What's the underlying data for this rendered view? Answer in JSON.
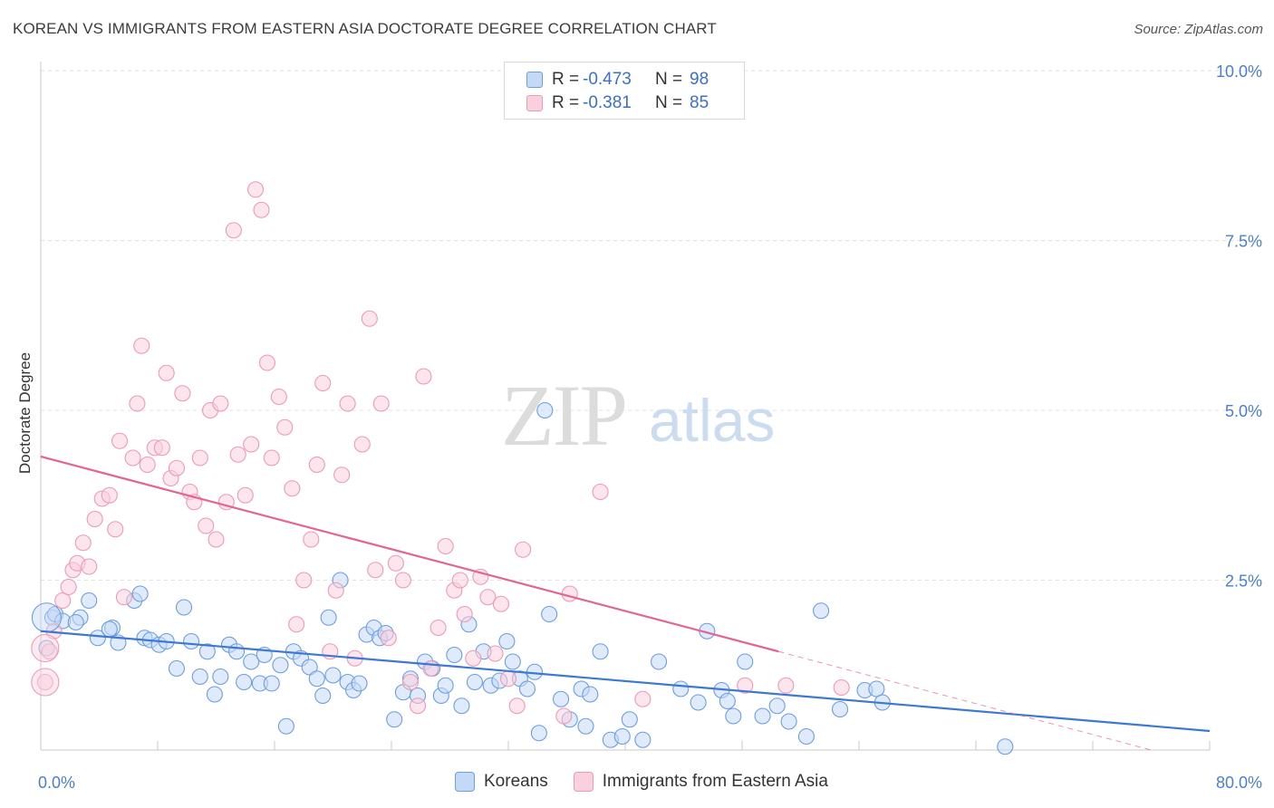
{
  "header": {
    "title": "KOREAN VS IMMIGRANTS FROM EASTERN ASIA DOCTORATE DEGREE CORRELATION CHART",
    "source": "Source: ZipAtlas.com"
  },
  "stats": [
    {
      "r_label": "R =",
      "r_value": "-0.473",
      "n_label": "N =",
      "n_value": "98",
      "color": "#6c9ee0",
      "fill": "#c4d9f6"
    },
    {
      "r_label": "R =",
      "r_value": "-0.381",
      "n_label": "N =",
      "n_value": "85",
      "color": "#ee9ab4",
      "fill": "#fad0dd"
    }
  ],
  "legend": [
    {
      "label": "Koreans",
      "color": "#6c9ee0",
      "fill": "#c4d9f6"
    },
    {
      "label": "Immigrants from Eastern Asia",
      "color": "#ee9ab4",
      "fill": "#fad0dd"
    }
  ],
  "chart_data": {
    "type": "scatter",
    "title": "KOREAN VS IMMIGRANTS FROM EASTERN ASIA DOCTORATE DEGREE CORRELATION CHART",
    "xlabel": "",
    "ylabel": "Doctorate Degree",
    "xlim": [
      0,
      80
    ],
    "ylim": [
      0,
      10.0
    ],
    "x_ticks": [
      "0.0%",
      "80.0%"
    ],
    "y_ticks": [
      {
        "value": 2.5,
        "label": "2.5%"
      },
      {
        "value": 5.0,
        "label": "5.0%"
      },
      {
        "value": 7.5,
        "label": "7.5%"
      },
      {
        "value": 10.0,
        "label": "10.0%"
      }
    ],
    "grid": true,
    "legend_position": "bottom",
    "watermark": {
      "main": "ZIP",
      "sub": "atlas"
    },
    "series": [
      {
        "name": "Koreans",
        "color": "#3d78d4",
        "fill": "#c4d9f6",
        "stroke": "#6c9ee0",
        "trend": {
          "x": [
            0,
            80
          ],
          "y": [
            1.75,
            0.28
          ]
        },
        "points": [
          [
            0.8,
            1.95
          ],
          [
            1.0,
            2.0
          ],
          [
            0.4,
            1.5
          ],
          [
            1.5,
            1.9
          ],
          [
            2.7,
            1.95
          ],
          [
            2.4,
            1.88
          ],
          [
            3.3,
            2.2
          ],
          [
            3.9,
            1.65
          ],
          [
            4.9,
            1.8
          ],
          [
            4.7,
            1.78
          ],
          [
            5.3,
            1.58
          ],
          [
            6.4,
            2.2
          ],
          [
            6.8,
            2.3
          ],
          [
            7.1,
            1.65
          ],
          [
            7.5,
            1.62
          ],
          [
            8.1,
            1.55
          ],
          [
            8.6,
            1.6
          ],
          [
            9.3,
            1.2
          ],
          [
            9.8,
            2.1
          ],
          [
            10.3,
            1.6
          ],
          [
            10.9,
            1.08
          ],
          [
            11.4,
            1.45
          ],
          [
            11.9,
            0.82
          ],
          [
            12.3,
            1.08
          ],
          [
            12.9,
            1.55
          ],
          [
            13.4,
            1.45
          ],
          [
            13.9,
            1.0
          ],
          [
            14.4,
            1.3
          ],
          [
            15.0,
            0.98
          ],
          [
            15.3,
            1.4
          ],
          [
            15.8,
            0.98
          ],
          [
            16.4,
            1.25
          ],
          [
            16.8,
            0.35
          ],
          [
            17.3,
            1.45
          ],
          [
            17.8,
            1.35
          ],
          [
            18.4,
            1.22
          ],
          [
            18.9,
            1.05
          ],
          [
            19.3,
            0.8
          ],
          [
            19.7,
            1.95
          ],
          [
            20.0,
            1.1
          ],
          [
            20.5,
            2.5
          ],
          [
            21.0,
            1.0
          ],
          [
            21.4,
            0.88
          ],
          [
            21.8,
            0.98
          ],
          [
            22.3,
            1.7
          ],
          [
            22.8,
            1.8
          ],
          [
            23.2,
            1.65
          ],
          [
            23.6,
            1.72
          ],
          [
            24.2,
            0.45
          ],
          [
            24.8,
            0.85
          ],
          [
            25.3,
            1.05
          ],
          [
            25.8,
            0.8
          ],
          [
            26.3,
            1.3
          ],
          [
            26.8,
            1.2
          ],
          [
            27.4,
            0.8
          ],
          [
            27.7,
            0.95
          ],
          [
            28.3,
            1.4
          ],
          [
            28.8,
            0.65
          ],
          [
            29.3,
            1.85
          ],
          [
            29.7,
            1.0
          ],
          [
            30.3,
            1.45
          ],
          [
            30.8,
            0.95
          ],
          [
            31.4,
            1.02
          ],
          [
            31.9,
            1.6
          ],
          [
            32.3,
            1.3
          ],
          [
            32.8,
            1.05
          ],
          [
            33.3,
            0.9
          ],
          [
            33.8,
            1.15
          ],
          [
            34.1,
            0.25
          ],
          [
            34.8,
            2.0
          ],
          [
            35.6,
            0.75
          ],
          [
            36.2,
            0.45
          ],
          [
            37.0,
            0.9
          ],
          [
            37.3,
            0.35
          ],
          [
            37.6,
            0.82
          ],
          [
            38.3,
            1.45
          ],
          [
            39.0,
            0.15
          ],
          [
            39.8,
            0.2
          ],
          [
            40.3,
            0.45
          ],
          [
            41.2,
            0.15
          ],
          [
            34.5,
            5.0
          ],
          [
            42.3,
            1.3
          ],
          [
            43.8,
            0.9
          ],
          [
            45.0,
            0.7
          ],
          [
            45.6,
            1.75
          ],
          [
            46.6,
            0.88
          ],
          [
            47.0,
            0.72
          ],
          [
            47.4,
            0.5
          ],
          [
            48.2,
            1.3
          ],
          [
            49.4,
            0.5
          ],
          [
            50.4,
            0.65
          ],
          [
            51.2,
            0.42
          ],
          [
            52.4,
            0.2
          ],
          [
            53.4,
            2.05
          ],
          [
            54.7,
            0.6
          ],
          [
            56.4,
            0.88
          ],
          [
            57.2,
            0.9
          ],
          [
            57.6,
            0.7
          ],
          [
            66.0,
            0.05
          ]
        ]
      },
      {
        "name": "Immigrants from Eastern Asia",
        "color": "#e36591",
        "fill": "#fad0dd",
        "stroke": "#ee9ab4",
        "trend": {
          "x": [
            0,
            50.5
          ],
          "y": [
            4.32,
            1.45
          ],
          "dashed_x": [
            50.5,
            76
          ],
          "dashed_y": [
            1.45,
            0.0
          ]
        },
        "points": [
          [
            0.3,
            1.0
          ],
          [
            0.6,
            1.45
          ],
          [
            0.9,
            1.75
          ],
          [
            1.5,
            2.2
          ],
          [
            1.9,
            2.4
          ],
          [
            2.2,
            2.65
          ],
          [
            2.5,
            2.75
          ],
          [
            2.9,
            3.05
          ],
          [
            3.3,
            2.7
          ],
          [
            3.7,
            3.4
          ],
          [
            4.2,
            3.7
          ],
          [
            4.7,
            3.75
          ],
          [
            5.1,
            3.25
          ],
          [
            5.4,
            4.55
          ],
          [
            5.7,
            2.25
          ],
          [
            6.3,
            4.3
          ],
          [
            6.6,
            5.1
          ],
          [
            6.9,
            5.95
          ],
          [
            7.3,
            4.2
          ],
          [
            7.8,
            4.45
          ],
          [
            8.3,
            4.45
          ],
          [
            8.6,
            5.55
          ],
          [
            8.9,
            4.0
          ],
          [
            9.3,
            4.15
          ],
          [
            9.7,
            5.25
          ],
          [
            10.2,
            3.8
          ],
          [
            10.5,
            3.65
          ],
          [
            10.9,
            4.3
          ],
          [
            11.3,
            3.3
          ],
          [
            11.6,
            5.0
          ],
          [
            12.0,
            3.1
          ],
          [
            12.3,
            5.1
          ],
          [
            12.7,
            3.65
          ],
          [
            13.2,
            7.65
          ],
          [
            13.5,
            4.35
          ],
          [
            14.0,
            3.75
          ],
          [
            14.4,
            4.5
          ],
          [
            14.7,
            8.25
          ],
          [
            15.1,
            7.95
          ],
          [
            15.5,
            5.7
          ],
          [
            15.8,
            4.3
          ],
          [
            16.3,
            5.2
          ],
          [
            16.7,
            4.75
          ],
          [
            17.2,
            3.85
          ],
          [
            17.5,
            1.85
          ],
          [
            18.0,
            2.5
          ],
          [
            18.5,
            3.1
          ],
          [
            18.9,
            4.2
          ],
          [
            19.3,
            5.4
          ],
          [
            19.8,
            1.45
          ],
          [
            20.2,
            2.35
          ],
          [
            20.6,
            4.05
          ],
          [
            21.0,
            5.1
          ],
          [
            21.5,
            1.35
          ],
          [
            22.0,
            4.5
          ],
          [
            22.5,
            6.35
          ],
          [
            22.9,
            2.65
          ],
          [
            23.3,
            5.1
          ],
          [
            23.8,
            1.65
          ],
          [
            24.3,
            2.75
          ],
          [
            24.8,
            2.5
          ],
          [
            25.3,
            1.0
          ],
          [
            25.8,
            0.65
          ],
          [
            26.2,
            5.5
          ],
          [
            26.7,
            1.2
          ],
          [
            27.2,
            1.8
          ],
          [
            27.7,
            3.0
          ],
          [
            28.3,
            2.35
          ],
          [
            28.7,
            2.5
          ],
          [
            29.0,
            2.0
          ],
          [
            29.6,
            1.35
          ],
          [
            30.1,
            2.55
          ],
          [
            30.6,
            2.25
          ],
          [
            31.1,
            1.42
          ],
          [
            31.5,
            2.15
          ],
          [
            32.0,
            1.05
          ],
          [
            32.6,
            0.65
          ],
          [
            33.0,
            2.95
          ],
          [
            35.8,
            0.5
          ],
          [
            36.2,
            2.3
          ],
          [
            38.3,
            3.8
          ],
          [
            41.2,
            0.75
          ],
          [
            48.2,
            0.95
          ],
          [
            51.0,
            0.95
          ],
          [
            54.8,
            0.92
          ]
        ]
      }
    ]
  }
}
